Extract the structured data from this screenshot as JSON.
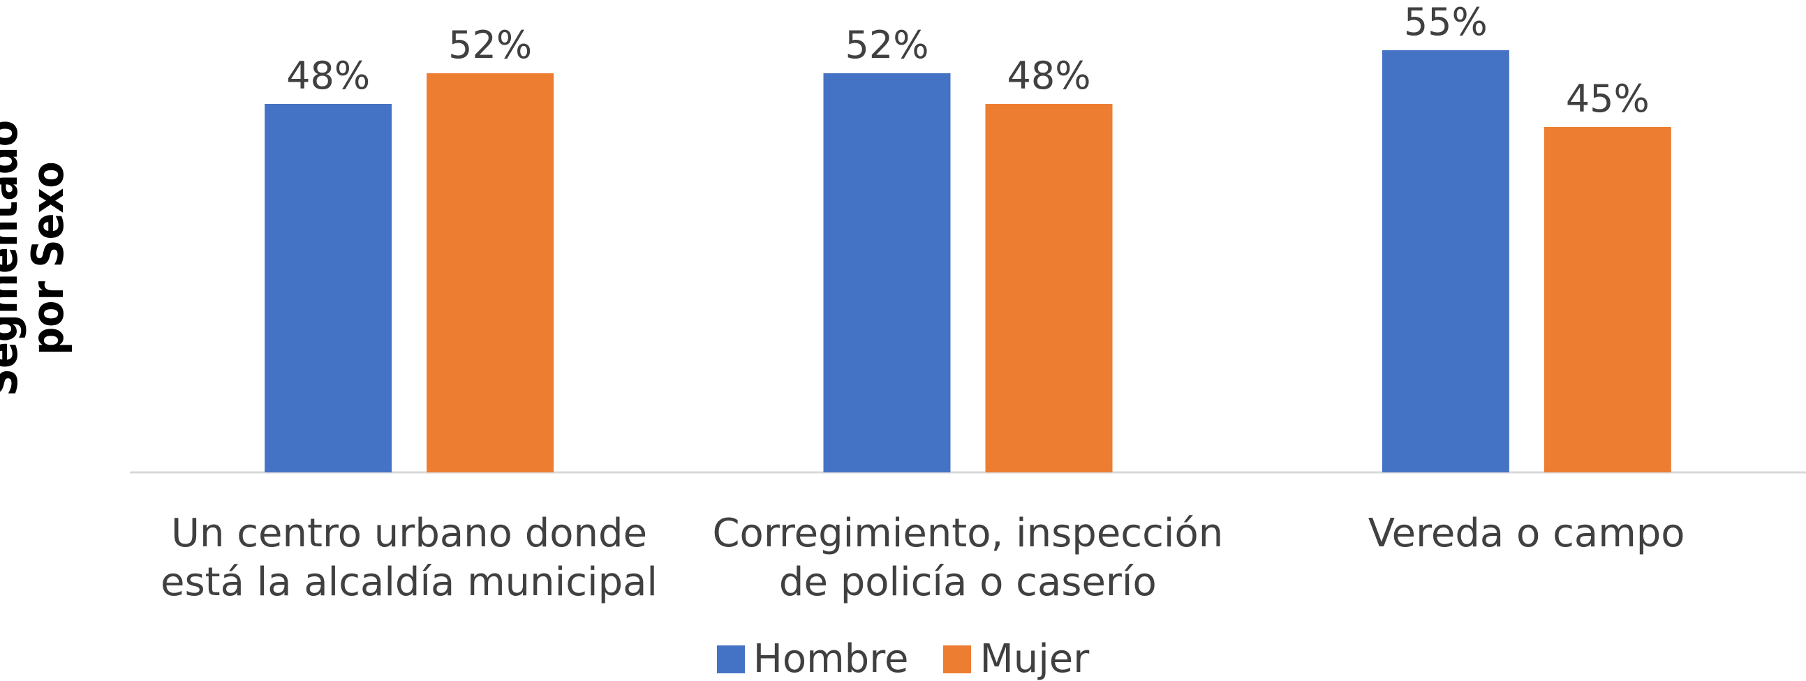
{
  "chart_data": {
    "type": "bar",
    "y_label": "Segmentado por Sexo",
    "categories": [
      "Un centro urbano donde está la alcaldía municipal",
      "Corregimiento, inspección de policía o caserío",
      "Vereda o campo"
    ],
    "series": [
      {
        "name": "Hombre",
        "color": "#4472c4",
        "values": [
          48,
          52,
          55
        ],
        "value_labels": [
          "48%",
          "52%",
          "55%"
        ]
      },
      {
        "name": "Mujer",
        "color": "#ed7d31",
        "values": [
          52,
          48,
          45
        ],
        "value_labels": [
          "52%",
          "48%",
          "45%"
        ]
      }
    ],
    "ylim": [
      0,
      60
    ],
    "legend": "bottom"
  }
}
